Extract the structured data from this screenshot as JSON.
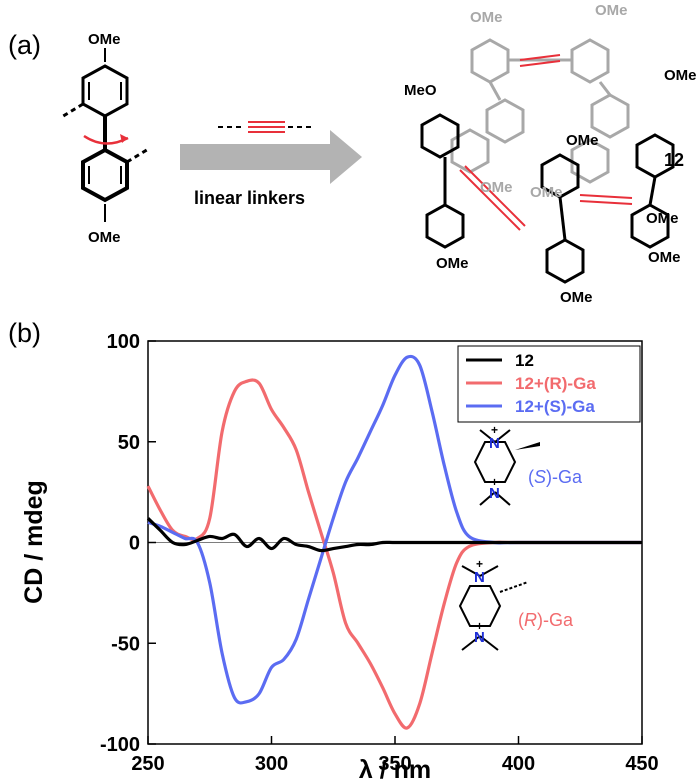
{
  "panel_a": {
    "label": "(a)",
    "arrow_label": "linear linkers",
    "biphenyl_substituents": [
      "OMe",
      "OMe"
    ],
    "macrocycle_label": "12",
    "macrocycle_substituents": [
      "OMe",
      "OMe",
      "MeO",
      "OMe",
      "OMe",
      "OMe",
      "OMe",
      "OMe",
      "OMe",
      "OMe",
      "OMe"
    ],
    "colors": {
      "red": "#e8303a",
      "grey": "#a8a8a8",
      "arrow": "#b3b3b3"
    }
  },
  "panel_b": {
    "label": "(b)",
    "s_ga_label": {
      "open": "(",
      "italic": "S",
      "rest": ")-Ga"
    },
    "r_ga_label": {
      "open": "(",
      "italic": "R",
      "rest": ")-Ga"
    },
    "n_plus": "+",
    "n_atom": "N"
  },
  "chart_data": {
    "type": "line",
    "xlabel": "λ / nm",
    "ylabel": "CD / mdeg",
    "xlim": [
      250,
      450
    ],
    "ylim": [
      -100,
      100
    ],
    "xticks": [
      250,
      300,
      350,
      400,
      450
    ],
    "yticks": [
      -100,
      -50,
      0,
      50,
      100
    ],
    "legend_position": "top-right",
    "series": [
      {
        "name": "12",
        "color": "#000000",
        "x": [
          250,
          255,
          260,
          265,
          270,
          275,
          280,
          285,
          290,
          295,
          300,
          305,
          310,
          315,
          320,
          325,
          330,
          335,
          340,
          345,
          350,
          360,
          380,
          400,
          450
        ],
        "y": [
          12,
          6,
          0,
          -1,
          1,
          3,
          2,
          4,
          -2,
          2,
          -3,
          2,
          -1,
          -2,
          -4,
          -3,
          -2,
          -1,
          -1,
          0,
          0,
          0,
          0,
          0,
          0
        ]
      },
      {
        "name": "12+(R)-Ga",
        "color": "#f26b6e",
        "x": [
          250,
          255,
          260,
          265,
          270,
          275,
          280,
          285,
          290,
          295,
          300,
          305,
          310,
          315,
          320,
          325,
          330,
          335,
          340,
          345,
          350,
          355,
          360,
          365,
          370,
          375,
          380,
          390,
          400,
          450
        ],
        "y": [
          28,
          16,
          6,
          3,
          2,
          12,
          55,
          75,
          80,
          79,
          66,
          57,
          46,
          25,
          5,
          -15,
          -40,
          -50,
          -60,
          -72,
          -85,
          -92,
          -80,
          -55,
          -30,
          -10,
          -2,
          0,
          0,
          0
        ]
      },
      {
        "name": "12+(S)-Ga",
        "color": "#5b6cf2",
        "x": [
          250,
          255,
          260,
          265,
          270,
          275,
          280,
          285,
          290,
          295,
          300,
          305,
          310,
          315,
          320,
          325,
          330,
          335,
          340,
          345,
          350,
          355,
          360,
          365,
          370,
          375,
          380,
          390,
          400,
          450
        ],
        "y": [
          10,
          8,
          5,
          2,
          0,
          -20,
          -55,
          -77,
          -79,
          -75,
          -62,
          -58,
          -48,
          -28,
          -8,
          12,
          30,
          42,
          55,
          68,
          83,
          92,
          88,
          65,
          38,
          15,
          3,
          0,
          0,
          0
        ]
      }
    ]
  }
}
